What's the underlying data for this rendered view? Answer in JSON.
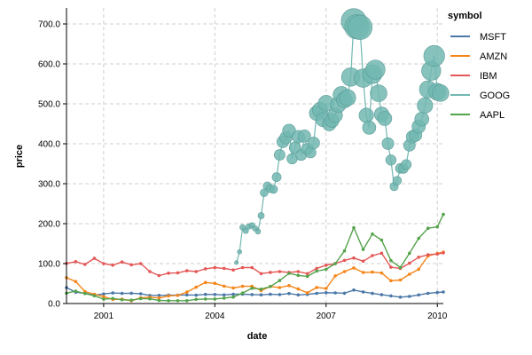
{
  "chart_data": {
    "type": "line",
    "xlabel": "date",
    "ylabel": "price",
    "xlim": [
      "2000-01-01",
      "2010-03-01"
    ],
    "ylim": [
      0,
      740
    ],
    "x_ticks": [
      "2001",
      "2004",
      "2007",
      "2010"
    ],
    "y_ticks": [
      "0.0",
      "100.0",
      "200.0",
      "300.0",
      "400.0",
      "500.0",
      "600.0",
      "700.0"
    ],
    "grid": true,
    "legend": {
      "title": "symbol",
      "placement": "top-right"
    },
    "size_encoding_series": "GOOG",
    "series": [
      {
        "name": "MSFT",
        "color": "#4c78a8",
        "values": [
          [
            "2000-01-01",
            39.8
          ],
          [
            "2000-04-01",
            28.4
          ],
          [
            "2000-07-01",
            25.6
          ],
          [
            "2000-10-01",
            21.2
          ],
          [
            "2001-01-01",
            24.1
          ],
          [
            "2001-04-01",
            26.5
          ],
          [
            "2001-07-01",
            25.3
          ],
          [
            "2001-10-01",
            25.8
          ],
          [
            "2002-01-01",
            24.4
          ],
          [
            "2002-04-01",
            20.3
          ],
          [
            "2002-07-01",
            20.4
          ],
          [
            "2002-10-01",
            20.8
          ],
          [
            "2003-01-01",
            20.8
          ],
          [
            "2003-04-01",
            21.5
          ],
          [
            "2003-07-01",
            20.9
          ],
          [
            "2003-10-01",
            22.9
          ],
          [
            "2004-01-01",
            22.7
          ],
          [
            "2004-04-01",
            21.6
          ],
          [
            "2004-07-01",
            23.3
          ],
          [
            "2004-10-01",
            23.4
          ],
          [
            "2005-01-01",
            22.4
          ],
          [
            "2005-04-01",
            21.8
          ],
          [
            "2005-07-01",
            23.2
          ],
          [
            "2005-10-01",
            22.4
          ],
          [
            "2006-01-01",
            25.2
          ],
          [
            "2006-04-01",
            21.6
          ],
          [
            "2006-07-01",
            22.8
          ],
          [
            "2006-10-01",
            25.6
          ],
          [
            "2007-01-01",
            27.2
          ],
          [
            "2007-04-01",
            26.6
          ],
          [
            "2007-07-01",
            25.8
          ],
          [
            "2007-10-01",
            33.7
          ],
          [
            "2008-01-01",
            29.0
          ],
          [
            "2008-04-01",
            25.3
          ],
          [
            "2008-07-01",
            22.1
          ],
          [
            "2008-10-01",
            19.1
          ],
          [
            "2009-01-01",
            15.9
          ],
          [
            "2009-04-01",
            17.8
          ],
          [
            "2009-07-01",
            21.6
          ],
          [
            "2009-10-01",
            25.5
          ],
          [
            "2010-01-01",
            27.6
          ],
          [
            "2010-03-01",
            28.8
          ]
        ]
      },
      {
        "name": "AMZN",
        "color": "#f58518",
        "values": [
          [
            "2000-01-01",
            64.6
          ],
          [
            "2000-04-01",
            55.2
          ],
          [
            "2000-07-01",
            30.1
          ],
          [
            "2000-10-01",
            23.4
          ],
          [
            "2001-01-01",
            17.3
          ],
          [
            "2001-04-01",
            10.2
          ],
          [
            "2001-07-01",
            11.2
          ],
          [
            "2001-10-01",
            6.9
          ],
          [
            "2002-01-01",
            14.2
          ],
          [
            "2002-04-01",
            15.7
          ],
          [
            "2002-07-01",
            13.9
          ],
          [
            "2002-10-01",
            19.2
          ],
          [
            "2003-01-01",
            20.4
          ],
          [
            "2003-04-01",
            28.7
          ],
          [
            "2003-07-01",
            41.0
          ],
          [
            "2003-10-01",
            52.6
          ],
          [
            "2004-01-01",
            50.4
          ],
          [
            "2004-04-01",
            43.6
          ],
          [
            "2004-07-01",
            38.9
          ],
          [
            "2004-10-01",
            43.2
          ],
          [
            "2005-01-01",
            43.2
          ],
          [
            "2005-04-01",
            32.4
          ],
          [
            "2005-07-01",
            42.6
          ],
          [
            "2005-10-01",
            40.0
          ],
          [
            "2006-01-01",
            44.8
          ],
          [
            "2006-04-01",
            36.5
          ],
          [
            "2006-07-01",
            26.9
          ],
          [
            "2006-10-01",
            40.3
          ],
          [
            "2007-01-01",
            37.7
          ],
          [
            "2007-04-01",
            69.1
          ],
          [
            "2007-07-01",
            79.9
          ],
          [
            "2007-10-01",
            89.2
          ],
          [
            "2008-01-01",
            77.7
          ],
          [
            "2008-04-01",
            78.6
          ],
          [
            "2008-07-01",
            76.4
          ],
          [
            "2008-10-01",
            57.2
          ],
          [
            "2009-01-01",
            58.8
          ],
          [
            "2009-04-01",
            73.4
          ],
          [
            "2009-07-01",
            85.8
          ],
          [
            "2009-10-01",
            118.8
          ],
          [
            "2010-01-01",
            125.4
          ],
          [
            "2010-03-01",
            128.8
          ]
        ]
      },
      {
        "name": "IBM",
        "color": "#e45756",
        "values": [
          [
            "2000-01-01",
            100.5
          ],
          [
            "2000-04-01",
            105.0
          ],
          [
            "2000-07-01",
            98.0
          ],
          [
            "2000-10-01",
            113.0
          ],
          [
            "2001-01-01",
            100.0
          ],
          [
            "2001-04-01",
            96.0
          ],
          [
            "2001-07-01",
            104.0
          ],
          [
            "2001-10-01",
            97.0
          ],
          [
            "2002-01-01",
            100.0
          ],
          [
            "2002-04-01",
            80.0
          ],
          [
            "2002-07-01",
            70.0
          ],
          [
            "2002-10-01",
            76.0
          ],
          [
            "2003-01-01",
            77.0
          ],
          [
            "2003-04-01",
            82.0
          ],
          [
            "2003-07-01",
            80.0
          ],
          [
            "2003-10-01",
            87.0
          ],
          [
            "2004-01-01",
            90.0
          ],
          [
            "2004-04-01",
            88.0
          ],
          [
            "2004-07-01",
            84.0
          ],
          [
            "2004-10-01",
            90.0
          ],
          [
            "2005-01-01",
            90.0
          ],
          [
            "2005-04-01",
            75.0
          ],
          [
            "2005-07-01",
            78.0
          ],
          [
            "2005-10-01",
            80.0
          ],
          [
            "2006-01-01",
            78.0
          ],
          [
            "2006-04-01",
            80.0
          ],
          [
            "2006-07-01",
            75.0
          ],
          [
            "2006-10-01",
            88.0
          ],
          [
            "2007-01-01",
            96.0
          ],
          [
            "2007-04-01",
            100.0
          ],
          [
            "2007-07-01",
            108.0
          ],
          [
            "2007-10-01",
            114.0
          ],
          [
            "2008-01-01",
            106.0
          ],
          [
            "2008-04-01",
            120.0
          ],
          [
            "2008-07-01",
            126.0
          ],
          [
            "2008-10-01",
            91.0
          ],
          [
            "2009-01-01",
            88.0
          ],
          [
            "2009-04-01",
            101.0
          ],
          [
            "2009-07-01",
            116.0
          ],
          [
            "2009-10-01",
            122.0
          ],
          [
            "2010-01-01",
            124.0
          ],
          [
            "2010-03-01",
            127.0
          ]
        ]
      },
      {
        "name": "GOOG",
        "color": "#72b7b2",
        "values": [
          [
            "2004-08-01",
            102.4
          ],
          [
            "2004-09-01",
            129.6
          ],
          [
            "2004-10-01",
            190.6
          ],
          [
            "2004-11-01",
            181.9
          ],
          [
            "2004-12-01",
            192.8
          ],
          [
            "2005-01-01",
            195.6
          ],
          [
            "2005-02-01",
            187.99
          ],
          [
            "2005-03-01",
            180.51
          ],
          [
            "2005-04-01",
            220.0
          ],
          [
            "2005-05-01",
            277.27
          ],
          [
            "2005-06-01",
            294.15
          ],
          [
            "2005-07-01",
            287.76
          ],
          [
            "2005-08-01",
            286.0
          ],
          [
            "2005-09-01",
            316.46
          ],
          [
            "2005-10-01",
            372.14
          ],
          [
            "2005-11-01",
            404.91
          ],
          [
            "2005-12-01",
            414.86
          ],
          [
            "2006-01-01",
            432.66
          ],
          [
            "2006-02-01",
            362.62
          ],
          [
            "2006-03-01",
            390.0
          ],
          [
            "2006-04-01",
            417.94
          ],
          [
            "2006-05-01",
            371.82
          ],
          [
            "2006-06-01",
            419.33
          ],
          [
            "2006-07-01",
            386.6
          ],
          [
            "2006-08-01",
            378.53
          ],
          [
            "2006-09-01",
            401.9
          ],
          [
            "2006-10-01",
            476.39
          ],
          [
            "2006-11-01",
            484.81
          ],
          [
            "2006-12-01",
            460.48
          ],
          [
            "2007-01-01",
            501.5
          ],
          [
            "2007-02-01",
            449.45
          ],
          [
            "2007-03-01",
            458.16
          ],
          [
            "2007-04-01",
            471.38
          ],
          [
            "2007-05-01",
            497.91
          ],
          [
            "2007-06-01",
            522.7
          ],
          [
            "2007-07-01",
            510.0
          ],
          [
            "2007-08-01",
            515.25
          ],
          [
            "2007-09-01",
            567.27
          ],
          [
            "2007-10-01",
            707.0
          ],
          [
            "2007-11-01",
            693.0
          ],
          [
            "2007-12-01",
            691.48
          ],
          [
            "2008-01-01",
            564.3
          ],
          [
            "2008-02-01",
            471.18
          ],
          [
            "2008-03-01",
            440.47
          ],
          [
            "2008-04-01",
            574.29
          ],
          [
            "2008-05-01",
            585.8
          ],
          [
            "2008-06-01",
            526.42
          ],
          [
            "2008-07-01",
            473.75
          ],
          [
            "2008-08-01",
            463.29
          ],
          [
            "2008-09-01",
            400.52
          ],
          [
            "2008-10-01",
            359.36
          ],
          [
            "2008-11-01",
            292.96
          ],
          [
            "2008-12-01",
            307.65
          ],
          [
            "2009-01-01",
            338.53
          ],
          [
            "2009-02-01",
            337.99
          ],
          [
            "2009-03-01",
            348.06
          ],
          [
            "2009-04-01",
            395.97
          ],
          [
            "2009-05-01",
            417.23
          ],
          [
            "2009-06-01",
            421.59
          ],
          [
            "2009-07-01",
            443.05
          ],
          [
            "2009-08-01",
            461.67
          ],
          [
            "2009-09-01",
            495.85
          ],
          [
            "2009-10-01",
            536.12
          ],
          [
            "2009-11-01",
            583.0
          ],
          [
            "2009-12-01",
            619.98
          ],
          [
            "2010-01-01",
            529.94
          ],
          [
            "2010-02-01",
            526.8
          ]
        ]
      },
      {
        "name": "AAPL",
        "color": "#54a24b",
        "values": [
          [
            "2000-01-01",
            25.94
          ],
          [
            "2000-04-01",
            31.0
          ],
          [
            "2000-07-01",
            25.0
          ],
          [
            "2000-10-01",
            19.56
          ],
          [
            "2001-01-01",
            10.81
          ],
          [
            "2001-04-01",
            12.74
          ],
          [
            "2001-07-01",
            9.4
          ],
          [
            "2001-10-01",
            8.5
          ],
          [
            "2002-01-01",
            12.36
          ],
          [
            "2002-04-01",
            11.76
          ],
          [
            "2002-07-01",
            7.75
          ],
          [
            "2002-10-01",
            7.17
          ],
          [
            "2003-01-01",
            7.18
          ],
          [
            "2003-04-01",
            7.11
          ],
          [
            "2003-07-01",
            10.54
          ],
          [
            "2003-10-01",
            11.28
          ],
          [
            "2004-01-01",
            11.26
          ],
          [
            "2004-04-01",
            13.52
          ],
          [
            "2004-07-01",
            16.17
          ],
          [
            "2004-10-01",
            26.27
          ],
          [
            "2005-01-01",
            38.45
          ],
          [
            "2005-04-01",
            36.06
          ],
          [
            "2005-07-01",
            42.65
          ],
          [
            "2005-10-01",
            57.59
          ],
          [
            "2006-01-01",
            75.51
          ],
          [
            "2006-04-01",
            70.39
          ],
          [
            "2006-07-01",
            67.96
          ],
          [
            "2006-10-01",
            81.08
          ],
          [
            "2007-01-01",
            85.73
          ],
          [
            "2007-04-01",
            99.8
          ],
          [
            "2007-07-01",
            131.76
          ],
          [
            "2007-10-01",
            189.95
          ],
          [
            "2008-01-01",
            135.36
          ],
          [
            "2008-04-01",
            173.95
          ],
          [
            "2008-07-01",
            158.95
          ],
          [
            "2008-10-01",
            107.59
          ],
          [
            "2009-01-01",
            90.13
          ],
          [
            "2009-04-01",
            125.83
          ],
          [
            "2009-07-01",
            163.39
          ],
          [
            "2009-10-01",
            188.5
          ],
          [
            "2010-01-01",
            192.06
          ],
          [
            "2010-03-01",
            223.02
          ]
        ]
      }
    ]
  }
}
